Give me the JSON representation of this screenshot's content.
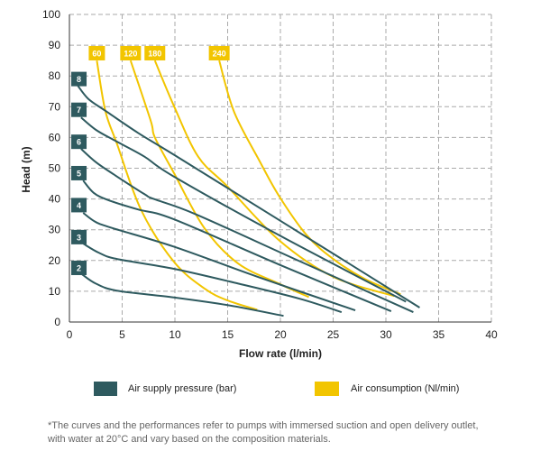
{
  "chart_data": {
    "type": "line",
    "xlabel": "Flow rate (l/min)",
    "ylabel": "Head (m)",
    "xlim": [
      0,
      40
    ],
    "ylim": [
      0,
      100
    ],
    "xticks": [
      0,
      5,
      10,
      15,
      20,
      25,
      30,
      35,
      40
    ],
    "yticks": [
      0,
      10,
      20,
      30,
      40,
      50,
      60,
      70,
      80,
      90,
      100
    ],
    "grid": true,
    "legend_position": "bottom",
    "legend": [
      {
        "label": "Air supply pressure (bar)",
        "color": "#2e5a5f"
      },
      {
        "label": "Air consumption (Nl/min)",
        "color": "#f2c500"
      }
    ],
    "pressure_series": [
      {
        "label": "2",
        "label_at": [
          0.9,
          17.6
        ],
        "points": [
          [
            1.2,
            15.5
          ],
          [
            2.5,
            12.5
          ],
          [
            4.5,
            10.2
          ],
          [
            9.9,
            8
          ],
          [
            15,
            5.5
          ],
          [
            20.3,
            2
          ]
        ]
      },
      {
        "label": "3",
        "label_at": [
          0.9,
          27.6
        ],
        "points": [
          [
            1.3,
            25.5
          ],
          [
            2.8,
            22.5
          ],
          [
            4.5,
            20.5
          ],
          [
            9.9,
            17.3
          ],
          [
            16,
            12.5
          ],
          [
            21.9,
            7.5
          ],
          [
            25.8,
            3.2
          ]
        ]
      },
      {
        "label": "4",
        "label_at": [
          0.9,
          38
        ],
        "points": [
          [
            1.3,
            35.5
          ],
          [
            2.5,
            32.5
          ],
          [
            4.2,
            30.4
          ],
          [
            9.9,
            24.5
          ],
          [
            18,
            14.5
          ],
          [
            27.1,
            3.8
          ]
        ]
      },
      {
        "label": "5",
        "label_at": [
          0.9,
          48.4
        ],
        "points": [
          [
            1.3,
            46
          ],
          [
            2.3,
            42
          ],
          [
            3.7,
            39.6
          ],
          [
            6.5,
            36.6
          ],
          [
            9.9,
            33.4
          ],
          [
            20,
            18.5
          ],
          [
            30.5,
            3.5
          ]
        ]
      },
      {
        "label": "6",
        "label_at": [
          0.9,
          58.6
        ],
        "points": [
          [
            1.1,
            56.3
          ],
          [
            2.5,
            52
          ],
          [
            4.2,
            48
          ],
          [
            7.1,
            41.6
          ],
          [
            8,
            40
          ],
          [
            12,
            35
          ],
          [
            22,
            19.5
          ],
          [
            32.6,
            3.2
          ]
        ]
      },
      {
        "label": "7",
        "label_at": [
          0.9,
          69
        ],
        "points": [
          [
            1.1,
            66.5
          ],
          [
            2.5,
            62.5
          ],
          [
            4.3,
            59
          ],
          [
            7.1,
            53.8
          ],
          [
            9.9,
            47.3
          ],
          [
            20,
            28
          ],
          [
            31.9,
            6.6
          ]
        ]
      },
      {
        "label": "8",
        "label_at": [
          0.9,
          79
        ],
        "points": [
          [
            0.8,
            76.8
          ],
          [
            1.8,
            72.5
          ],
          [
            3.4,
            68.7
          ],
          [
            6.5,
            61.5
          ],
          [
            9.9,
            54.4
          ],
          [
            20,
            32.9
          ],
          [
            33.2,
            4.7
          ]
        ]
      }
    ],
    "consumption_series": [
      {
        "label": "60",
        "label_at": [
          2.6,
          87.4
        ],
        "points": [
          [
            2.6,
            85
          ],
          [
            3.4,
            68.7
          ],
          [
            4.5,
            58
          ],
          [
            6.8,
            36.4
          ],
          [
            9.9,
            19.6
          ],
          [
            12.8,
            10.9
          ],
          [
            15,
            7
          ],
          [
            17.8,
            4
          ]
        ]
      },
      {
        "label": "120",
        "label_at": [
          5.8,
          87.4
        ],
        "points": [
          [
            5.8,
            85
          ],
          [
            7.7,
            65.5
          ],
          [
            8.1,
            60
          ],
          [
            9.9,
            48.5
          ],
          [
            12.8,
            30.5
          ],
          [
            16,
            19
          ],
          [
            19.9,
            12.4
          ],
          [
            22.7,
            8.1
          ]
        ]
      },
      {
        "label": "180",
        "label_at": [
          8.1,
          87.4
        ],
        "points": [
          [
            8.1,
            85
          ],
          [
            9.9,
            70.3
          ],
          [
            12.2,
            53.8
          ],
          [
            15,
            44
          ],
          [
            19.9,
            26.5
          ],
          [
            25,
            14.7
          ],
          [
            30.8,
            8.4
          ]
        ]
      },
      {
        "label": "240",
        "label_at": [
          14.2,
          87.4
        ],
        "points": [
          [
            14.2,
            85
          ],
          [
            15.6,
            68.4
          ],
          [
            18,
            52.5
          ],
          [
            19.9,
            40.8
          ],
          [
            22.5,
            28.2
          ],
          [
            25,
            20.5
          ],
          [
            28,
            14
          ],
          [
            31.4,
            9
          ]
        ]
      }
    ],
    "colors": {
      "pressure": "#2e5a5f",
      "consumption": "#f2c500",
      "grid": "#aaaaaa"
    }
  },
  "footnote": {
    "line1": "*The curves and the performances refer to pumps with immersed suction and open delivery outlet,",
    "line2": "with water at 20°C and vary based on the composition materials."
  }
}
